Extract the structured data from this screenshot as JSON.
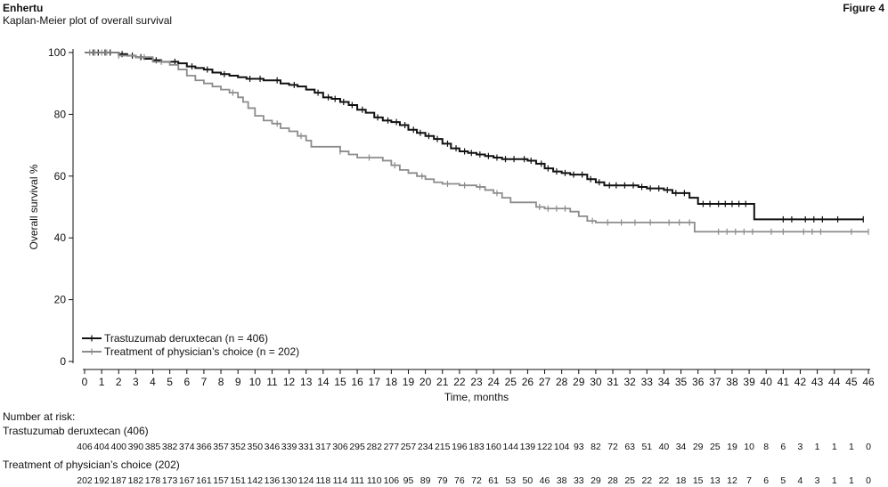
{
  "header": {
    "drug": "Enhertu",
    "subtitle": "Kaplan-Meier plot of overall survival",
    "figure": "Figure 4"
  },
  "chart_data": {
    "type": "line",
    "title": "Kaplan-Meier plot of overall survival",
    "xlabel": "Time, months",
    "ylabel": "Overall survival %",
    "xlim": [
      0,
      46
    ],
    "ylim": [
      0,
      100
    ],
    "xticks": [
      0,
      1,
      2,
      3,
      4,
      5,
      6,
      7,
      8,
      9,
      10,
      11,
      12,
      13,
      14,
      15,
      16,
      17,
      18,
      19,
      20,
      21,
      22,
      23,
      24,
      25,
      26,
      27,
      28,
      29,
      30,
      31,
      32,
      33,
      34,
      35,
      36,
      37,
      38,
      39,
      40,
      41,
      42,
      43,
      44,
      45,
      46
    ],
    "yticks": [
      0,
      20,
      40,
      60,
      80,
      100
    ],
    "grid": false,
    "legend_position": "bottom-left",
    "series": [
      {
        "name": "Trastuzumab deruxtecan (n = 406)",
        "color": "#111111",
        "steps": [
          [
            0,
            100
          ],
          [
            1,
            100
          ],
          [
            2,
            99.5
          ],
          [
            2.5,
            99
          ],
          [
            3,
            98.5
          ],
          [
            3.5,
            98
          ],
          [
            4,
            97.5
          ],
          [
            4.5,
            97
          ],
          [
            5,
            97
          ],
          [
            5.5,
            96.5
          ],
          [
            6,
            95.5
          ],
          [
            6.5,
            95
          ],
          [
            7,
            94.5
          ],
          [
            7.5,
            93.5
          ],
          [
            8,
            93
          ],
          [
            8.5,
            92.5
          ],
          [
            9,
            92
          ],
          [
            9.5,
            91.5
          ],
          [
            10,
            91.5
          ],
          [
            10.5,
            91
          ],
          [
            11,
            91
          ],
          [
            11.5,
            90
          ],
          [
            12,
            89.5
          ],
          [
            12.5,
            89
          ],
          [
            13,
            88
          ],
          [
            13.5,
            87
          ],
          [
            14,
            85.5
          ],
          [
            14.5,
            85
          ],
          [
            15,
            84
          ],
          [
            15.5,
            83
          ],
          [
            16,
            81.5
          ],
          [
            16.5,
            80.5
          ],
          [
            17,
            79
          ],
          [
            17.5,
            78
          ],
          [
            18,
            77.5
          ],
          [
            18.5,
            76.5
          ],
          [
            19,
            75
          ],
          [
            19.5,
            74
          ],
          [
            20,
            73
          ],
          [
            20.5,
            72
          ],
          [
            21,
            70.5
          ],
          [
            21.5,
            69
          ],
          [
            22,
            68
          ],
          [
            22.5,
            67.5
          ],
          [
            23,
            67
          ],
          [
            23.5,
            66.5
          ],
          [
            24,
            66
          ],
          [
            24.5,
            65.5
          ],
          [
            25,
            65.5
          ],
          [
            25.5,
            65.5
          ],
          [
            26,
            65
          ],
          [
            26.5,
            64
          ],
          [
            27,
            62.5
          ],
          [
            27.5,
            61.5
          ],
          [
            28,
            61
          ],
          [
            28.5,
            60.5
          ],
          [
            29,
            60.5
          ],
          [
            29.5,
            59
          ],
          [
            30,
            58
          ],
          [
            30.5,
            57
          ],
          [
            31,
            57
          ],
          [
            31.5,
            57
          ],
          [
            32,
            57
          ],
          [
            32.5,
            56.5
          ],
          [
            33,
            56
          ],
          [
            33.5,
            56
          ],
          [
            34,
            55.5
          ],
          [
            34.5,
            54.5
          ],
          [
            35,
            54.5
          ],
          [
            35.5,
            53
          ],
          [
            36,
            51
          ],
          [
            37,
            51
          ],
          [
            38,
            51
          ],
          [
            39,
            51
          ],
          [
            39.3,
            46
          ],
          [
            41,
            46
          ],
          [
            42,
            46
          ],
          [
            43,
            46
          ],
          [
            44,
            46
          ],
          [
            45.7,
            46
          ]
        ],
        "censors": [
          0.5,
          0.8,
          1.2,
          1.5,
          2.2,
          2.8,
          3.3,
          4.2,
          5.3,
          6.3,
          7.2,
          8.2,
          9.7,
          10.3,
          11.3,
          12.3,
          13.7,
          14.3,
          14.7,
          15.2,
          15.7,
          16.3,
          17.2,
          17.8,
          18.3,
          18.8,
          19.3,
          19.7,
          20.2,
          20.7,
          21.3,
          21.8,
          22.3,
          22.7,
          23.2,
          23.7,
          24.2,
          24.7,
          25.2,
          25.8,
          26.2,
          26.8,
          27.2,
          27.7,
          28.2,
          28.7,
          29.2,
          29.7,
          30.2,
          30.8,
          31.2,
          31.7,
          32.2,
          32.7,
          33.2,
          33.7,
          34.2,
          34.7,
          35.2,
          36.3,
          36.7,
          37.2,
          37.6,
          38.0,
          38.4,
          38.8,
          41.0,
          41.5,
          42.3,
          42.8,
          43.3,
          44.2,
          45.7
        ],
        "at_risk_label": "Trastuzumab deruxtecan (406)",
        "at_risk": [
          406,
          404,
          400,
          390,
          385,
          382,
          374,
          366,
          357,
          352,
          350,
          346,
          339,
          331,
          317,
          306,
          295,
          282,
          277,
          257,
          234,
          215,
          196,
          183,
          160,
          144,
          139,
          122,
          104,
          93,
          82,
          72,
          63,
          51,
          40,
          34,
          29,
          25,
          19,
          10,
          8,
          6,
          3,
          1,
          1,
          1,
          0
        ]
      },
      {
        "name": "Treatment of physician’s choice (n = 202)",
        "color": "#8c8c8c",
        "steps": [
          [
            0,
            100
          ],
          [
            1,
            100
          ],
          [
            2,
            99
          ],
          [
            3,
            98.5
          ],
          [
            4,
            97
          ],
          [
            5,
            96
          ],
          [
            5.5,
            94.5
          ],
          [
            6,
            92.5
          ],
          [
            6.5,
            91
          ],
          [
            7,
            90
          ],
          [
            7.5,
            89
          ],
          [
            8,
            88
          ],
          [
            8.5,
            87
          ],
          [
            9,
            85.5
          ],
          [
            9.3,
            84
          ],
          [
            9.6,
            82
          ],
          [
            10,
            79.5
          ],
          [
            10.5,
            78
          ],
          [
            11,
            77
          ],
          [
            11.5,
            75.5
          ],
          [
            12,
            74.5
          ],
          [
            12.5,
            73
          ],
          [
            13,
            71.5
          ],
          [
            13.3,
            69.5
          ],
          [
            14,
            69.5
          ],
          [
            15,
            68
          ],
          [
            15.5,
            67
          ],
          [
            16,
            66
          ],
          [
            17,
            66
          ],
          [
            17.5,
            65
          ],
          [
            18,
            63.5
          ],
          [
            18.5,
            62
          ],
          [
            19,
            61
          ],
          [
            19.5,
            60
          ],
          [
            20,
            59
          ],
          [
            20.5,
            58
          ],
          [
            21,
            57.5
          ],
          [
            22,
            57
          ],
          [
            23,
            56.5
          ],
          [
            23.5,
            55.5
          ],
          [
            24,
            54.5
          ],
          [
            24.5,
            53
          ],
          [
            25,
            51.5
          ],
          [
            26,
            51.5
          ],
          [
            26.5,
            50
          ],
          [
            27,
            49.5
          ],
          [
            28,
            49.5
          ],
          [
            28.5,
            48.5
          ],
          [
            29,
            47
          ],
          [
            29.5,
            45.5
          ],
          [
            30,
            45
          ],
          [
            31,
            45
          ],
          [
            32,
            45
          ],
          [
            33,
            45
          ],
          [
            34,
            45
          ],
          [
            35,
            45
          ],
          [
            35.8,
            42
          ],
          [
            36,
            42
          ],
          [
            46,
            42
          ]
        ],
        "censors": [
          0.3,
          0.6,
          1.0,
          1.3,
          2.0,
          3.5,
          4.5,
          8.7,
          11.3,
          12.7,
          15.0,
          16.7,
          18.2,
          19.8,
          21.3,
          22.3,
          23.2,
          24.2,
          26.7,
          27.2,
          27.7,
          28.2,
          29.8,
          30.7,
          31.5,
          32.3,
          33.2,
          34.3,
          34.9,
          35.5,
          37.2,
          37.7,
          38.2,
          38.7,
          39.2,
          40.3,
          41.0,
          42.2,
          42.7,
          43.2,
          45.0,
          46.0
        ],
        "at_risk_label": "Treatment of physician’s choice (202)",
        "at_risk": [
          202,
          192,
          187,
          182,
          178,
          173,
          167,
          161,
          157,
          151,
          142,
          136,
          130,
          124,
          118,
          114,
          111,
          110,
          106,
          95,
          89,
          79,
          76,
          72,
          61,
          53,
          50,
          46,
          38,
          33,
          29,
          28,
          25,
          22,
          22,
          18,
          15,
          13,
          12,
          7,
          6,
          5,
          4,
          3,
          1,
          1,
          0
        ]
      }
    ],
    "at_risk_title": "Number at risk:"
  }
}
